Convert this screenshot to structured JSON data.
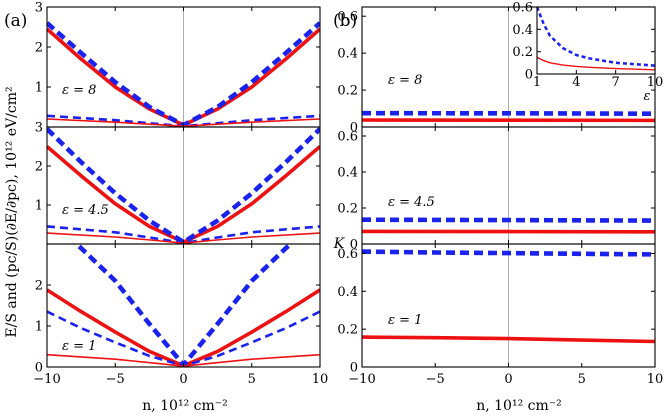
{
  "colors": {
    "red": "#ee1111",
    "blue": "#1a22ee",
    "frame": "#000000",
    "zero_line": "#9a9a9a"
  },
  "panel_labels": {
    "a": "(a)",
    "b": "(b)"
  },
  "axis_labels": {
    "a_y": "E/S and (pc/S)(∂E/∂pc), 10¹² eV/cm²",
    "a_x": "n, 10¹² cm⁻²",
    "b_y": "K",
    "b_x": "n, 10¹² cm⁻²",
    "inset_x": "ε"
  },
  "chart_data": [
    {
      "id": "a-eps8",
      "type": "line",
      "annotation": "ε = 8",
      "xlim": [
        -10,
        10
      ],
      "ylim": [
        0,
        3
      ],
      "yticks": [
        "1",
        "2",
        "3"
      ],
      "series": [
        {
          "color": "red",
          "style": "solid-thick",
          "points": [
            [
              -10,
              2.45
            ],
            [
              -7.5,
              1.7
            ],
            [
              -5,
              1.0
            ],
            [
              -2.5,
              0.45
            ],
            [
              0,
              0.05
            ],
            [
              2.5,
              0.45
            ],
            [
              5,
              1.0
            ],
            [
              7.5,
              1.7
            ],
            [
              10,
              2.45
            ]
          ]
        },
        {
          "color": "blue",
          "style": "dashed-thick",
          "points": [
            [
              -10,
              2.6
            ],
            [
              -7.5,
              1.85
            ],
            [
              -5,
              1.12
            ],
            [
              -2.5,
              0.5
            ],
            [
              0,
              0.05
            ],
            [
              2.5,
              0.5
            ],
            [
              5,
              1.12
            ],
            [
              7.5,
              1.85
            ],
            [
              10,
              2.6
            ]
          ]
        },
        {
          "color": "blue",
          "style": "dashed-thin",
          "points": [
            [
              -10,
              0.28
            ],
            [
              -5,
              0.17
            ],
            [
              -2,
              0.08
            ],
            [
              0,
              0.02
            ],
            [
              2,
              0.08
            ],
            [
              5,
              0.17
            ],
            [
              10,
              0.28
            ]
          ]
        },
        {
          "color": "red",
          "style": "solid-thin",
          "points": [
            [
              -10,
              0.2
            ],
            [
              -5,
              0.12
            ],
            [
              -2,
              0.06
            ],
            [
              0,
              0.02
            ],
            [
              2,
              0.06
            ],
            [
              5,
              0.12
            ],
            [
              10,
              0.2
            ]
          ]
        }
      ]
    },
    {
      "id": "a-eps4.5",
      "type": "line",
      "annotation": "ε = 4.5",
      "xlim": [
        -10,
        10
      ],
      "ylim": [
        0,
        3
      ],
      "yticks": [
        "1",
        "2",
        "3"
      ],
      "series": [
        {
          "color": "red",
          "style": "solid-thick",
          "points": [
            [
              -10,
              2.5
            ],
            [
              -7.5,
              1.75
            ],
            [
              -5,
              1.03
            ],
            [
              -2.5,
              0.45
            ],
            [
              0,
              0.05
            ],
            [
              2.5,
              0.45
            ],
            [
              5,
              1.03
            ],
            [
              7.5,
              1.75
            ],
            [
              10,
              2.5
            ]
          ]
        },
        {
          "color": "blue",
          "style": "dashed-thick",
          "points": [
            [
              -10,
              2.95
            ],
            [
              -7.5,
              2.1
            ],
            [
              -5,
              1.3
            ],
            [
              -2.5,
              0.6
            ],
            [
              0,
              0.05
            ],
            [
              2.5,
              0.6
            ],
            [
              5,
              1.3
            ],
            [
              7.5,
              2.1
            ],
            [
              10,
              2.95
            ]
          ]
        },
        {
          "color": "blue",
          "style": "dashed-thin",
          "points": [
            [
              -10,
              0.45
            ],
            [
              -5,
              0.3
            ],
            [
              -2,
              0.14
            ],
            [
              0,
              0.02
            ],
            [
              2,
              0.14
            ],
            [
              5,
              0.3
            ],
            [
              10,
              0.45
            ]
          ]
        },
        {
          "color": "red",
          "style": "solid-thin",
          "points": [
            [
              -10,
              0.28
            ],
            [
              -5,
              0.18
            ],
            [
              -2,
              0.09
            ],
            [
              0,
              0.02
            ],
            [
              2,
              0.09
            ],
            [
              5,
              0.18
            ],
            [
              10,
              0.28
            ]
          ]
        }
      ]
    },
    {
      "id": "a-eps1",
      "type": "line",
      "annotation": "ε = 1",
      "xlim": [
        -10,
        10
      ],
      "ylim": [
        0,
        3
      ],
      "yticks": [
        "0",
        "1",
        "2"
      ],
      "series": [
        {
          "color": "red",
          "style": "solid-thick",
          "points": [
            [
              -10,
              1.88
            ],
            [
              -7.5,
              1.35
            ],
            [
              -5,
              0.85
            ],
            [
              -2.5,
              0.38
            ],
            [
              0,
              0.03
            ],
            [
              2.5,
              0.38
            ],
            [
              5,
              0.85
            ],
            [
              7.5,
              1.35
            ],
            [
              10,
              1.88
            ]
          ]
        },
        {
          "color": "blue",
          "style": "dashed-thick",
          "points": [
            [
              -10,
              3.6
            ],
            [
              -7.5,
              2.9
            ],
            [
              -5,
              2.1
            ],
            [
              -2.5,
              1.05
            ],
            [
              0,
              0.05
            ],
            [
              2.5,
              1.05
            ],
            [
              5,
              2.1
            ],
            [
              7.5,
              2.9
            ],
            [
              10,
              3.6
            ]
          ]
        },
        {
          "color": "blue",
          "style": "dashed-thin",
          "points": [
            [
              -10,
              1.35
            ],
            [
              -7.5,
              0.95
            ],
            [
              -5,
              0.6
            ],
            [
              -2.5,
              0.27
            ],
            [
              0,
              0.03
            ],
            [
              2.5,
              0.27
            ],
            [
              5,
              0.6
            ],
            [
              7.5,
              0.95
            ],
            [
              10,
              1.35
            ]
          ]
        },
        {
          "color": "red",
          "style": "solid-thin",
          "points": [
            [
              -10,
              0.3
            ],
            [
              -5,
              0.19
            ],
            [
              -2,
              0.09
            ],
            [
              0,
              0.02
            ],
            [
              2,
              0.09
            ],
            [
              5,
              0.19
            ],
            [
              10,
              0.3
            ]
          ]
        }
      ]
    },
    {
      "id": "b-eps8",
      "type": "line",
      "annotation": "ε = 8",
      "xlim": [
        -10,
        10
      ],
      "ylim": [
        0,
        0.65
      ],
      "yticks": [
        "0",
        "0.2",
        "0.4",
        "0.6"
      ],
      "series": [
        {
          "color": "blue",
          "style": "dashed-thick",
          "points": [
            [
              -10,
              0.075
            ],
            [
              0,
              0.074
            ],
            [
              10,
              0.072
            ]
          ]
        },
        {
          "color": "red",
          "style": "solid-thick",
          "points": [
            [
              -10,
              0.038
            ],
            [
              0,
              0.037
            ],
            [
              10,
              0.036
            ]
          ]
        }
      ]
    },
    {
      "id": "b-eps4.5",
      "type": "line",
      "annotation": "ε = 4.5",
      "xlim": [
        -10,
        10
      ],
      "ylim": [
        0,
        0.65
      ],
      "yticks": [
        "0",
        "0.2",
        "0.4",
        "0.6"
      ],
      "series": [
        {
          "color": "blue",
          "style": "dashed-thick",
          "points": [
            [
              -10,
              0.135
            ],
            [
              0,
              0.133
            ],
            [
              10,
              0.13
            ]
          ]
        },
        {
          "color": "red",
          "style": "solid-thick",
          "points": [
            [
              -10,
              0.07
            ],
            [
              0,
              0.069
            ],
            [
              10,
              0.068
            ]
          ]
        }
      ]
    },
    {
      "id": "b-eps1",
      "type": "line",
      "annotation": "ε = 1",
      "xlim": [
        -10,
        10
      ],
      "ylim": [
        0,
        0.65
      ],
      "yticks": [
        "0",
        "0.2",
        "0.4",
        "0.6"
      ],
      "series": [
        {
          "color": "blue",
          "style": "dashed-thick",
          "points": [
            [
              -10,
              0.61
            ],
            [
              -5,
              0.605
            ],
            [
              0,
              0.602
            ],
            [
              5,
              0.598
            ],
            [
              10,
              0.595
            ]
          ]
        },
        {
          "color": "red",
          "style": "solid-thick",
          "points": [
            [
              -10,
              0.158
            ],
            [
              -5,
              0.155
            ],
            [
              0,
              0.15
            ],
            [
              5,
              0.142
            ],
            [
              10,
              0.135
            ]
          ]
        }
      ]
    },
    {
      "id": "b-inset",
      "type": "line",
      "xlim": [
        1,
        10
      ],
      "ylim": [
        0,
        0.6
      ],
      "xticks": [
        "1",
        "4",
        "7",
        "10"
      ],
      "yticks": [
        "0",
        "0.2",
        "0.4",
        "0.6"
      ],
      "series": [
        {
          "color": "blue",
          "style": "dashed-thick",
          "points": [
            [
              1,
              0.6
            ],
            [
              1.5,
              0.45
            ],
            [
              2,
              0.34
            ],
            [
              3,
              0.23
            ],
            [
              4,
              0.17
            ],
            [
              5,
              0.14
            ],
            [
              7,
              0.1
            ],
            [
              10,
              0.075
            ]
          ]
        },
        {
          "color": "red",
          "style": "solid-thin",
          "points": [
            [
              1,
              0.15
            ],
            [
              1.5,
              0.12
            ],
            [
              2,
              0.1
            ],
            [
              3,
              0.08
            ],
            [
              4,
              0.068
            ],
            [
              5,
              0.06
            ],
            [
              7,
              0.048
            ],
            [
              10,
              0.038
            ]
          ]
        }
      ]
    }
  ],
  "x_ticks_main": [
    "−10",
    "−5",
    "0",
    "5",
    "10"
  ]
}
